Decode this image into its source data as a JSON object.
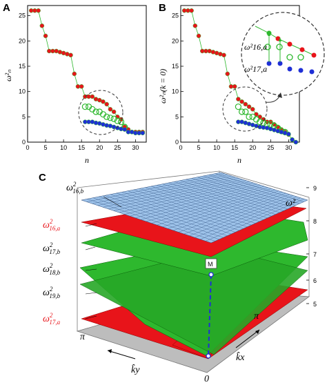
{
  "panels": {
    "A": {
      "label": "A",
      "ylabel": "ω²ₙ",
      "xlabel": "n"
    },
    "B": {
      "label": "B",
      "ylabel": "ω²ₙ(k = 0)",
      "xlabel": "n"
    },
    "C": {
      "label": "C"
    }
  },
  "inset": {
    "label_a": "ω²16,a",
    "label_b": "ω²17,a"
  },
  "surface_labels": [
    {
      "base": "ω",
      "sup": "2",
      "sub": "16,b",
      "color": "#000000"
    },
    {
      "base": "ω",
      "sup": "2",
      "sub": "16,a",
      "color": "#e8141a"
    },
    {
      "base": "ω",
      "sup": "2",
      "sub": "17,b",
      "color": "#000000"
    },
    {
      "base": "ω",
      "sup": "2",
      "sub": "18,b",
      "color": "#000000"
    },
    {
      "base": "ω",
      "sup": "2",
      "sub": "19,b",
      "color": "#000000"
    },
    {
      "base": "ω",
      "sup": "2",
      "sub": "17,a",
      "color": "#e8141a"
    }
  ],
  "panelC_axes": {
    "z_label": "ω²",
    "z_ticks": [
      "9",
      "8",
      "7",
      "6",
      "5"
    ],
    "kx_label": "k̂x",
    "ky_label": "k̂y",
    "pi_label": "π",
    "zero_label": "0",
    "point_label": "M"
  },
  "colors": {
    "red": "#e8141a",
    "blue": "#1f2fd6",
    "green": "#2eb82e",
    "sky": "#9ec3ea",
    "grey": "#bdbdbd"
  },
  "chart_data": [
    {
      "type": "scatter",
      "panel": "A",
      "xlabel": "n",
      "ylabel": "ω²ₙ",
      "xlim": [
        0,
        33
      ],
      "ylim": [
        0,
        27
      ],
      "xticks": [
        0,
        5,
        10,
        15,
        20,
        25,
        30
      ],
      "yticks": [
        0,
        5,
        10,
        15,
        20,
        25
      ],
      "series": [
        {
          "color": "#e8141a",
          "points": [
            [
              1,
              26
            ],
            [
              2,
              26
            ],
            [
              3,
              26
            ],
            [
              4,
              23
            ],
            [
              5,
              21
            ],
            [
              6,
              18
            ],
            [
              7,
              18
            ],
            [
              8,
              18
            ],
            [
              9,
              17.8
            ],
            [
              10,
              17.6
            ],
            [
              11,
              17.4
            ],
            [
              12,
              17.2
            ],
            [
              13,
              13.5
            ],
            [
              14,
              11
            ],
            [
              15,
              11
            ],
            [
              16,
              9
            ],
            [
              17,
              9
            ],
            [
              18,
              9
            ],
            [
              19,
              8.5
            ],
            [
              20,
              8.3
            ],
            [
              21,
              8
            ],
            [
              22,
              7.5
            ],
            [
              23,
              6.5
            ],
            [
              24,
              6
            ],
            [
              25,
              5
            ],
            [
              26,
              4.5
            ],
            [
              27,
              3
            ],
            [
              28,
              2.5
            ],
            [
              29,
              2
            ],
            [
              30,
              2
            ],
            [
              31,
              2
            ],
            [
              32,
              2
            ]
          ]
        },
        {
          "color": "#2eb82e",
          "marker": "ring",
          "points": [
            [
              16,
              7
            ],
            [
              17,
              7
            ],
            [
              18,
              6.5
            ],
            [
              19,
              6
            ],
            [
              20,
              6
            ],
            [
              21,
              5.5
            ],
            [
              22,
              5
            ],
            [
              23,
              4.8
            ],
            [
              24,
              4.6
            ],
            [
              25,
              4.2
            ],
            [
              26,
              4
            ],
            [
              27,
              3
            ]
          ]
        },
        {
          "color": "#1f2fd6",
          "points": [
            [
              16,
              4
            ],
            [
              17,
              4
            ],
            [
              18,
              4
            ],
            [
              19,
              3.8
            ],
            [
              20,
              3.7
            ],
            [
              21,
              3.5
            ],
            [
              22,
              3.3
            ],
            [
              23,
              3.2
            ],
            [
              24,
              3
            ],
            [
              25,
              2.8
            ],
            [
              26,
              2.6
            ],
            [
              27,
              2.5
            ],
            [
              28,
              2
            ],
            [
              29,
              2
            ],
            [
              30,
              1.8
            ],
            [
              31,
              1.8
            ],
            [
              32,
              1.8
            ]
          ]
        }
      ]
    },
    {
      "type": "scatter",
      "panel": "B",
      "xlabel": "n",
      "ylabel": "ω²ₙ(k = 0)",
      "xlim": [
        0,
        33
      ],
      "ylim": [
        0,
        27
      ],
      "xticks": [
        0,
        5,
        10,
        15,
        20,
        25,
        30
      ],
      "yticks": [
        0,
        5,
        10,
        15,
        20,
        25
      ],
      "series": [
        {
          "color": "#e8141a",
          "points": [
            [
              1,
              26
            ],
            [
              2,
              26
            ],
            [
              3,
              26
            ],
            [
              4,
              23
            ],
            [
              5,
              21
            ],
            [
              6,
              18
            ],
            [
              7,
              18
            ],
            [
              8,
              18
            ],
            [
              9,
              17.8
            ],
            [
              10,
              17.6
            ],
            [
              11,
              17.4
            ],
            [
              12,
              17.2
            ],
            [
              13,
              13.5
            ],
            [
              14,
              11
            ],
            [
              15,
              11
            ],
            [
              16,
              8.5
            ],
            [
              17,
              8
            ],
            [
              18,
              7.5
            ],
            [
              19,
              7
            ],
            [
              20,
              6.5
            ],
            [
              21,
              5.5
            ],
            [
              22,
              5
            ],
            [
              23,
              4.5
            ],
            [
              24,
              4
            ],
            [
              25,
              4
            ],
            [
              26,
              3.5
            ],
            [
              27,
              3
            ],
            [
              28,
              2.5
            ],
            [
              29,
              2
            ],
            [
              30,
              1.5
            ],
            [
              31,
              0.5
            ],
            [
              32,
              0
            ]
          ]
        },
        {
          "color": "#2eb82e",
          "marker": "ring",
          "points": [
            [
              16,
              7
            ],
            [
              17,
              6
            ],
            [
              18,
              6
            ],
            [
              19,
              5
            ],
            [
              20,
              5
            ],
            [
              21,
              4.5
            ],
            [
              22,
              4
            ],
            [
              23,
              3.8
            ],
            [
              24,
              3.5
            ],
            [
              25,
              3.5
            ],
            [
              26,
              3.2
            ],
            [
              27,
              2.8
            ],
            [
              28,
              2.2
            ],
            [
              29,
              2
            ]
          ]
        },
        {
          "color": "#1f2fd6",
          "points": [
            [
              16,
              4
            ],
            [
              17,
              4
            ],
            [
              18,
              3.8
            ],
            [
              19,
              3.6
            ],
            [
              20,
              3.4
            ],
            [
              21,
              3.2
            ],
            [
              22,
              3
            ],
            [
              23,
              2.9
            ],
            [
              24,
              2.8
            ],
            [
              25,
              2.6
            ],
            [
              26,
              2.4
            ],
            [
              27,
              2.2
            ],
            [
              28,
              2
            ],
            [
              29,
              1.8
            ],
            [
              30,
              1.6
            ],
            [
              31,
              0.5
            ],
            [
              32,
              0
            ]
          ]
        }
      ]
    }
  ]
}
